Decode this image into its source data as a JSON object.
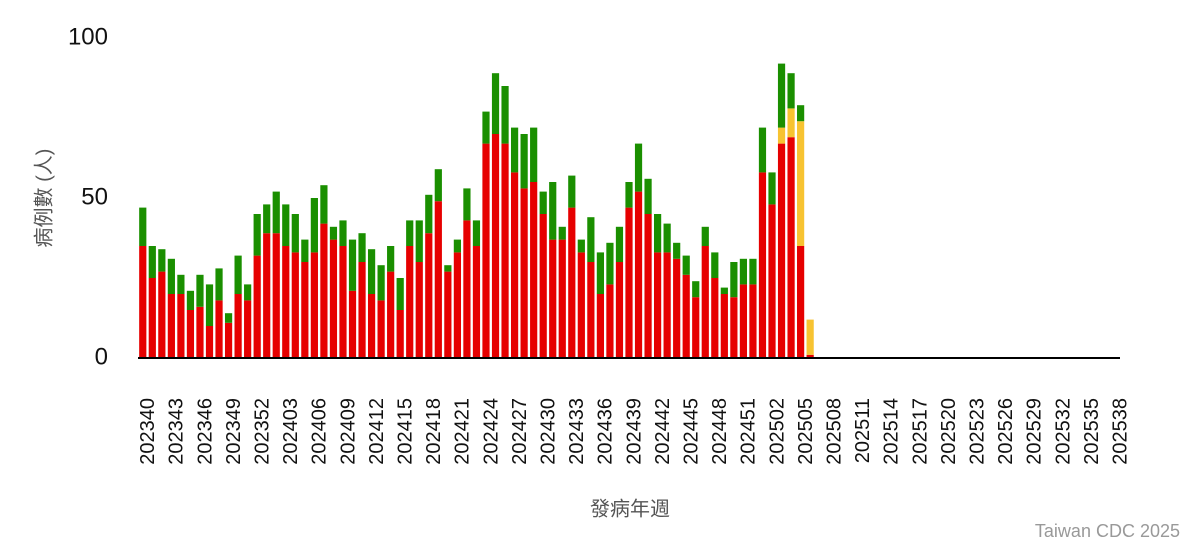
{
  "chart_data": {
    "type": "stacked_bar",
    "y_label": "病例數 (人)",
    "x_label": "發病年週",
    "credit": "Taiwan CDC 2025",
    "categories": [
      "202340",
      null,
      null,
      "202343",
      null,
      null,
      "202346",
      null,
      null,
      "202349",
      null,
      null,
      "202352",
      null,
      null,
      "202403",
      null,
      null,
      "202406",
      null,
      null,
      "202409",
      null,
      null,
      "202412",
      null,
      null,
      "202415",
      null,
      null,
      "202418",
      null,
      null,
      "202421",
      null,
      null,
      "202424",
      null,
      null,
      "202427",
      null,
      null,
      "202430",
      null,
      null,
      "202433",
      null,
      null,
      "202436",
      null,
      null,
      "202439",
      null,
      null,
      "202442",
      null,
      null,
      "202445",
      null,
      null,
      "202448",
      null,
      null,
      "202451",
      null,
      null,
      "202502",
      null,
      null,
      "202505",
      null,
      null,
      "202508",
      null,
      null,
      "202511",
      null,
      null,
      "202514",
      null,
      null,
      "202517",
      null,
      null,
      "202520",
      null,
      null,
      "202523",
      null,
      null,
      "202526",
      null,
      null,
      "202529",
      null,
      null,
      "202532",
      null,
      null,
      "202535",
      null,
      null,
      "202538"
    ],
    "series": [
      {
        "color": "#e60000",
        "values": [
          35,
          25,
          27,
          20,
          20,
          15,
          16,
          10,
          18,
          11,
          20,
          18,
          32,
          39,
          39,
          35,
          33,
          30,
          33,
          42,
          37,
          35,
          21,
          30,
          20,
          18,
          27,
          15,
          35,
          30,
          39,
          49,
          27,
          33,
          43,
          35,
          67,
          70,
          67,
          58,
          53,
          55,
          45,
          37,
          37,
          47,
          33,
          30,
          20,
          23,
          30,
          47,
          52,
          45,
          33,
          33,
          31,
          26,
          19,
          35,
          25,
          20,
          19,
          23,
          23,
          58,
          48,
          67,
          69,
          35,
          1,
          null,
          null,
          null,
          null,
          null,
          null,
          null,
          null,
          null,
          null,
          null,
          null,
          null,
          null,
          null,
          null,
          null,
          null,
          null,
          null,
          null,
          null,
          null,
          null,
          null,
          null,
          null,
          null,
          null,
          null,
          null,
          null
        ]
      },
      {
        "color": "#f7c331",
        "values": [
          0,
          0,
          0,
          0,
          0,
          0,
          0,
          0,
          0,
          0,
          0,
          0,
          0,
          0,
          0,
          0,
          0,
          0,
          0,
          0,
          0,
          0,
          0,
          0,
          0,
          0,
          0,
          0,
          0,
          0,
          0,
          0,
          0,
          0,
          0,
          0,
          0,
          0,
          0,
          0,
          0,
          0,
          0,
          0,
          0,
          0,
          0,
          0,
          0,
          0,
          0,
          0,
          0,
          0,
          0,
          0,
          0,
          0,
          0,
          0,
          0,
          0,
          0,
          0,
          0,
          0,
          0,
          5,
          9,
          39,
          11,
          null,
          null,
          null,
          null,
          null,
          null,
          null,
          null,
          null,
          null,
          null,
          null,
          null,
          null,
          null,
          null,
          null,
          null,
          null,
          null,
          null,
          null,
          null,
          null,
          null,
          null,
          null,
          null,
          null,
          null,
          null,
          null
        ]
      },
      {
        "color": "#1a8f00",
        "values": [
          12,
          10,
          7,
          11,
          6,
          6,
          10,
          13,
          10,
          3,
          12,
          5,
          13,
          9,
          13,
          13,
          12,
          7,
          17,
          12,
          4,
          8,
          16,
          9,
          14,
          11,
          8,
          10,
          8,
          13,
          12,
          10,
          2,
          4,
          10,
          8,
          10,
          19,
          18,
          14,
          17,
          17,
          7,
          18,
          4,
          10,
          4,
          14,
          13,
          13,
          11,
          8,
          15,
          11,
          12,
          9,
          5,
          6,
          5,
          6,
          8,
          2,
          11,
          8,
          8,
          14,
          10,
          20,
          11,
          5,
          0,
          null,
          null,
          null,
          null,
          null,
          null,
          null,
          null,
          null,
          null,
          null,
          null,
          null,
          null,
          null,
          null,
          null,
          null,
          null,
          null,
          null,
          null,
          null,
          null,
          null,
          null,
          null,
          null,
          null,
          null,
          null,
          null
        ]
      }
    ],
    "ylim": [
      0,
      100
    ],
    "yticks": [
      0,
      50,
      100
    ]
  }
}
